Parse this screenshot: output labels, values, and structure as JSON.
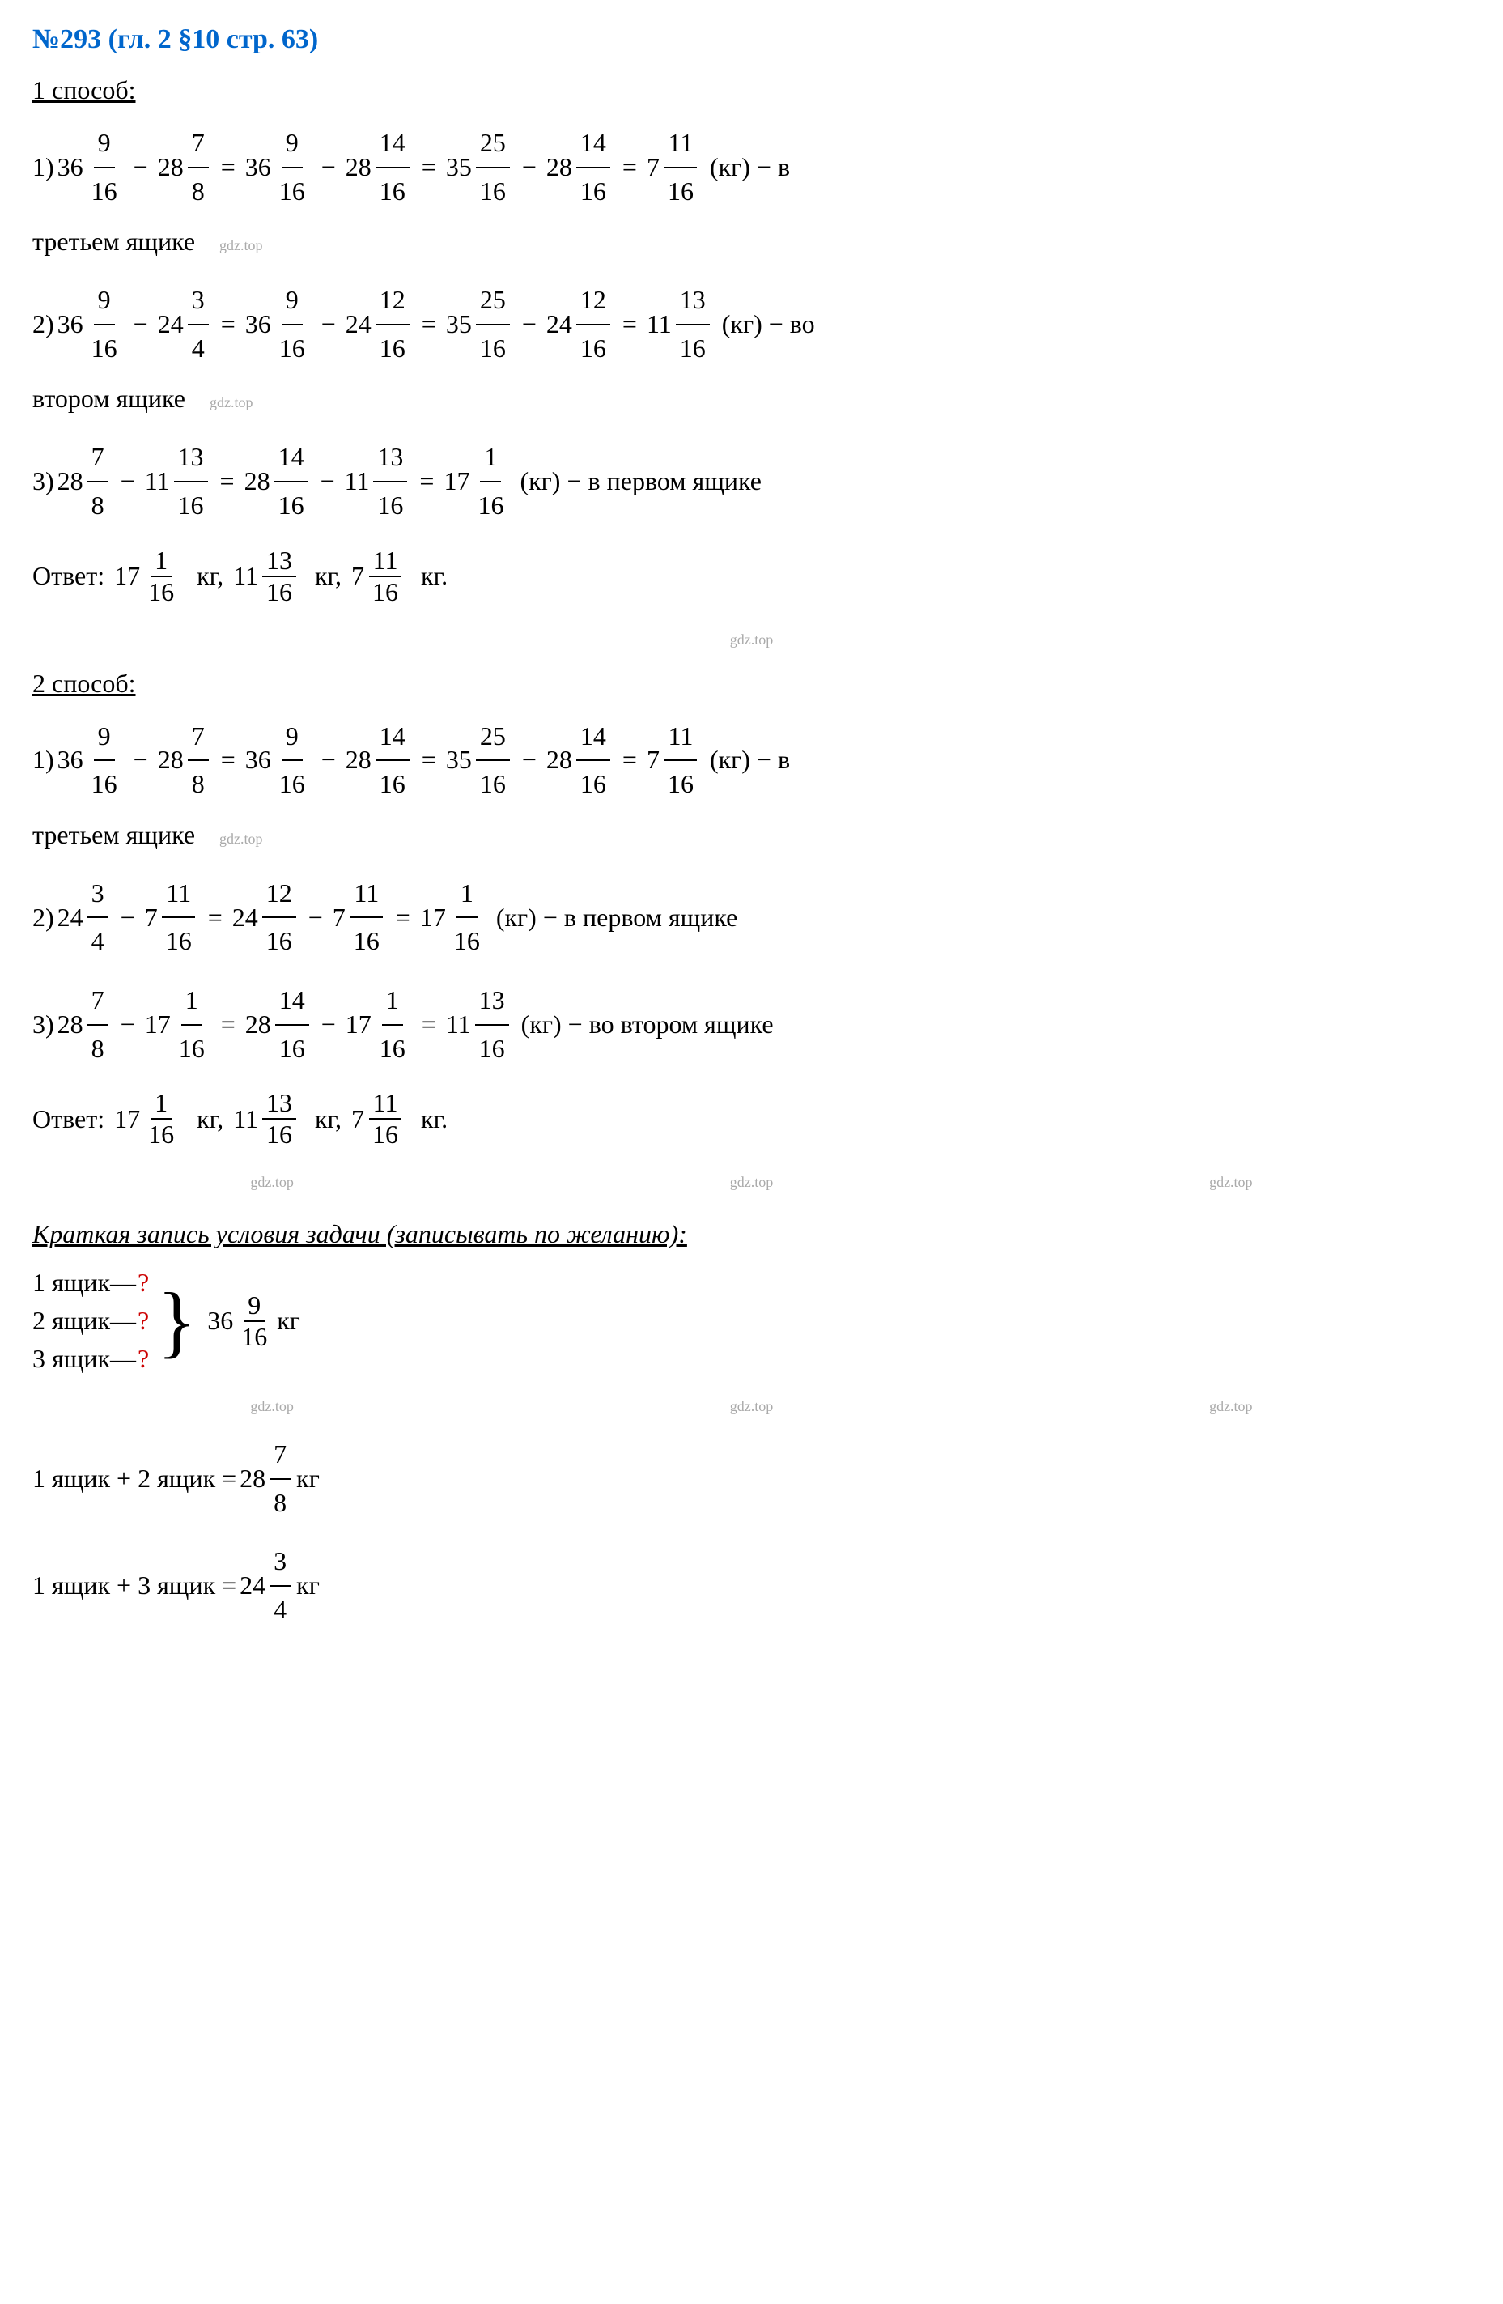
{
  "title": "№293 (гл. 2 §10 стр. 63)",
  "method1": {
    "label": "1 способ:",
    "steps": [
      {
        "num": "1)",
        "parts": [
          {
            "type": "mixed",
            "w": "36",
            "n": "9",
            "d": "16"
          },
          {
            "type": "op",
            "v": "−"
          },
          {
            "type": "mixed",
            "w": "28",
            "n": "7",
            "d": "8"
          },
          {
            "type": "op",
            "v": "="
          },
          {
            "type": "mixed",
            "w": "36",
            "n": "9",
            "d": "16"
          },
          {
            "type": "op",
            "v": "−"
          },
          {
            "type": "mixed",
            "w": "28",
            "n": "14",
            "d": "16"
          },
          {
            "type": "op",
            "v": "="
          },
          {
            "type": "mixed",
            "w": "35",
            "n": "25",
            "d": "16"
          },
          {
            "type": "op",
            "v": "−"
          },
          {
            "type": "mixed",
            "w": "28",
            "n": "14",
            "d": "16"
          },
          {
            "type": "op",
            "v": "="
          },
          {
            "type": "mixed",
            "w": "7",
            "n": "11",
            "d": "16"
          },
          {
            "type": "text",
            "v": " (кг) − в"
          }
        ],
        "cont": "третьем ящике"
      },
      {
        "num": "2)",
        "parts": [
          {
            "type": "mixed",
            "w": "36",
            "n": "9",
            "d": "16"
          },
          {
            "type": "op",
            "v": "−"
          },
          {
            "type": "mixed",
            "w": "24",
            "n": "3",
            "d": "4"
          },
          {
            "type": "op",
            "v": "="
          },
          {
            "type": "mixed",
            "w": "36",
            "n": "9",
            "d": "16"
          },
          {
            "type": "op",
            "v": "−"
          },
          {
            "type": "mixed",
            "w": "24",
            "n": "12",
            "d": "16"
          },
          {
            "type": "op",
            "v": "="
          },
          {
            "type": "mixed",
            "w": "35",
            "n": "25",
            "d": "16"
          },
          {
            "type": "op",
            "v": "−"
          },
          {
            "type": "mixed",
            "w": "24",
            "n": "12",
            "d": "16"
          },
          {
            "type": "op",
            "v": "="
          },
          {
            "type": "mixed",
            "w": "11",
            "n": "13",
            "d": "16"
          },
          {
            "type": "text",
            "v": " (кг) − во"
          }
        ],
        "cont": "втором ящике"
      },
      {
        "num": "3)",
        "parts": [
          {
            "type": "mixed",
            "w": "28",
            "n": "7",
            "d": "8"
          },
          {
            "type": "op",
            "v": "−"
          },
          {
            "type": "mixed",
            "w": "11",
            "n": "13",
            "d": "16"
          },
          {
            "type": "op",
            "v": "="
          },
          {
            "type": "mixed",
            "w": "28",
            "n": "14",
            "d": "16"
          },
          {
            "type": "op",
            "v": "−"
          },
          {
            "type": "mixed",
            "w": "11",
            "n": "13",
            "d": "16"
          },
          {
            "type": "op",
            "v": "="
          },
          {
            "type": "mixed",
            "w": "17",
            "n": "1",
            "d": "16"
          },
          {
            "type": "text",
            "v": " (кг) − в первом ящике"
          }
        ],
        "cont": ""
      }
    ],
    "answer": {
      "label": "Ответ:",
      "parts": [
        {
          "type": "mixed",
          "w": "17",
          "n": "1",
          "d": "16"
        },
        {
          "type": "text",
          "v": " кг, "
        },
        {
          "type": "mixed",
          "w": "11",
          "n": "13",
          "d": "16"
        },
        {
          "type": "text",
          "v": " кг, "
        },
        {
          "type": "mixed",
          "w": "7",
          "n": "11",
          "d": "16"
        },
        {
          "type": "text",
          "v": " кг."
        }
      ]
    }
  },
  "method2": {
    "label": "2 способ:",
    "steps": [
      {
        "num": "1)",
        "parts": [
          {
            "type": "mixed",
            "w": "36",
            "n": "9",
            "d": "16"
          },
          {
            "type": "op",
            "v": "−"
          },
          {
            "type": "mixed",
            "w": "28",
            "n": "7",
            "d": "8"
          },
          {
            "type": "op",
            "v": "="
          },
          {
            "type": "mixed",
            "w": "36",
            "n": "9",
            "d": "16"
          },
          {
            "type": "op",
            "v": "−"
          },
          {
            "type": "mixed",
            "w": "28",
            "n": "14",
            "d": "16"
          },
          {
            "type": "op",
            "v": "="
          },
          {
            "type": "mixed",
            "w": "35",
            "n": "25",
            "d": "16"
          },
          {
            "type": "op",
            "v": "−"
          },
          {
            "type": "mixed",
            "w": "28",
            "n": "14",
            "d": "16"
          },
          {
            "type": "op",
            "v": "="
          },
          {
            "type": "mixed",
            "w": "7",
            "n": "11",
            "d": "16"
          },
          {
            "type": "text",
            "v": " (кг) − в"
          }
        ],
        "cont": "третьем ящике"
      },
      {
        "num": "2)",
        "parts": [
          {
            "type": "mixed",
            "w": "24",
            "n": "3",
            "d": "4"
          },
          {
            "type": "op",
            "v": "−"
          },
          {
            "type": "mixed",
            "w": "7",
            "n": "11",
            "d": "16"
          },
          {
            "type": "op",
            "v": "="
          },
          {
            "type": "mixed",
            "w": "24",
            "n": "12",
            "d": "16"
          },
          {
            "type": "op",
            "v": "−"
          },
          {
            "type": "mixed",
            "w": "7",
            "n": "11",
            "d": "16"
          },
          {
            "type": "op",
            "v": "="
          },
          {
            "type": "mixed",
            "w": "17",
            "n": "1",
            "d": "16"
          },
          {
            "type": "text",
            "v": " (кг) − в первом ящике"
          }
        ],
        "cont": ""
      },
      {
        "num": "3)",
        "parts": [
          {
            "type": "mixed",
            "w": "28",
            "n": "7",
            "d": "8"
          },
          {
            "type": "op",
            "v": "−"
          },
          {
            "type": "mixed",
            "w": "17",
            "n": "1",
            "d": "16"
          },
          {
            "type": "op",
            "v": "="
          },
          {
            "type": "mixed",
            "w": "28",
            "n": "14",
            "d": "16"
          },
          {
            "type": "op",
            "v": "−"
          },
          {
            "type": "mixed",
            "w": "17",
            "n": "1",
            "d": "16"
          },
          {
            "type": "op",
            "v": "="
          },
          {
            "type": "mixed",
            "w": "11",
            "n": "13",
            "d": "16"
          },
          {
            "type": "text",
            "v": " (кг) − во втором ящике"
          }
        ],
        "cont": ""
      }
    ],
    "answer": {
      "label": "Ответ:",
      "parts": [
        {
          "type": "mixed",
          "w": "17",
          "n": "1",
          "d": "16"
        },
        {
          "type": "text",
          "v": " кг, "
        },
        {
          "type": "mixed",
          "w": "11",
          "n": "13",
          "d": "16"
        },
        {
          "type": "text",
          "v": " кг, "
        },
        {
          "type": "mixed",
          "w": "7",
          "n": "11",
          "d": "16"
        },
        {
          "type": "text",
          "v": " кг."
        }
      ]
    }
  },
  "summary": {
    "label": "Краткая запись условия задачи (записывать по желанию):",
    "boxes": [
      {
        "label": "1 ящик—",
        "q": "?"
      },
      {
        "label": "2 ящик—",
        "q": "?"
      },
      {
        "label": "3 ящик—",
        "q": "?"
      }
    ],
    "total": {
      "w": "36",
      "n": "9",
      "d": "16",
      "unit": " кг"
    },
    "eq1": {
      "lhs": "1 ящик + 2 ящик =",
      "w": "28",
      "n": "7",
      "d": "8",
      "unit": " кг"
    },
    "eq2": {
      "lhs": "1 ящик + 3 ящик =",
      "w": "24",
      "n": "3",
      "d": "4",
      "unit": " кг"
    }
  },
  "watermark": "gdz.top"
}
